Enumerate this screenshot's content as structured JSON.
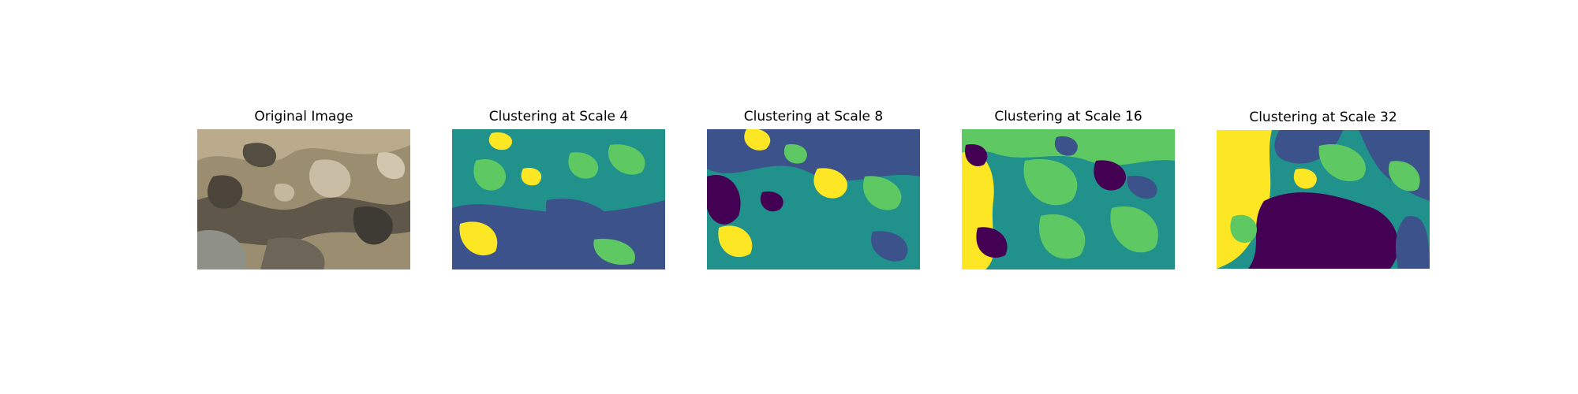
{
  "figure": {
    "panels": [
      {
        "title": "Original Image",
        "kind": "photo"
      },
      {
        "title": "Clustering at Scale 4",
        "kind": "cluster"
      },
      {
        "title": "Clustering at Scale 8",
        "kind": "cluster"
      },
      {
        "title": "Clustering at Scale 16",
        "kind": "cluster"
      },
      {
        "title": "Clustering at Scale 32",
        "kind": "cluster"
      }
    ],
    "colormap": {
      "name": "viridis",
      "cluster_colors": [
        "#440154",
        "#3b528b",
        "#21918c",
        "#5ec962",
        "#fde725"
      ]
    },
    "photo_colors": [
      "#a39575",
      "#6f6656",
      "#3f3a33",
      "#c8bda4",
      "#8a8a7f"
    ]
  }
}
